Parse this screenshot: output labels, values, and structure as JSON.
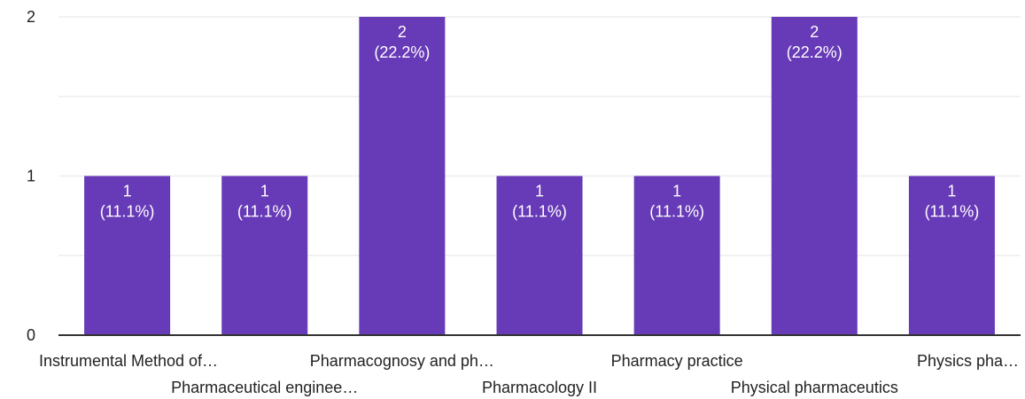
{
  "chart_data": {
    "type": "bar",
    "categories": [
      "Instrumental Method of…",
      "Pharmaceutical enginee…",
      "Pharmacognosy and ph…",
      "Pharmacology II",
      "Pharmacy practice",
      "Physical pharmaceutics",
      "Physics pha…"
    ],
    "values": [
      1,
      1,
      2,
      1,
      1,
      2,
      1
    ],
    "data_labels": [
      [
        "1",
        "(11.1%)"
      ],
      [
        "1",
        "(11.1%)"
      ],
      [
        "2",
        "(22.2%)"
      ],
      [
        "1",
        "(11.1%)"
      ],
      [
        "1",
        "(11.1%)"
      ],
      [
        "2",
        "(22.2%)"
      ],
      [
        "1",
        "(11.1%)"
      ]
    ],
    "y_ticks": [
      "0",
      "1",
      "2"
    ],
    "ylim": [
      0,
      2
    ],
    "grid": true,
    "bar_color": "#673ab7",
    "gridline_color": "#eeeeee",
    "axis_color": "#333333",
    "label_color": "#222222",
    "data_label_color": "#ffffff"
  }
}
